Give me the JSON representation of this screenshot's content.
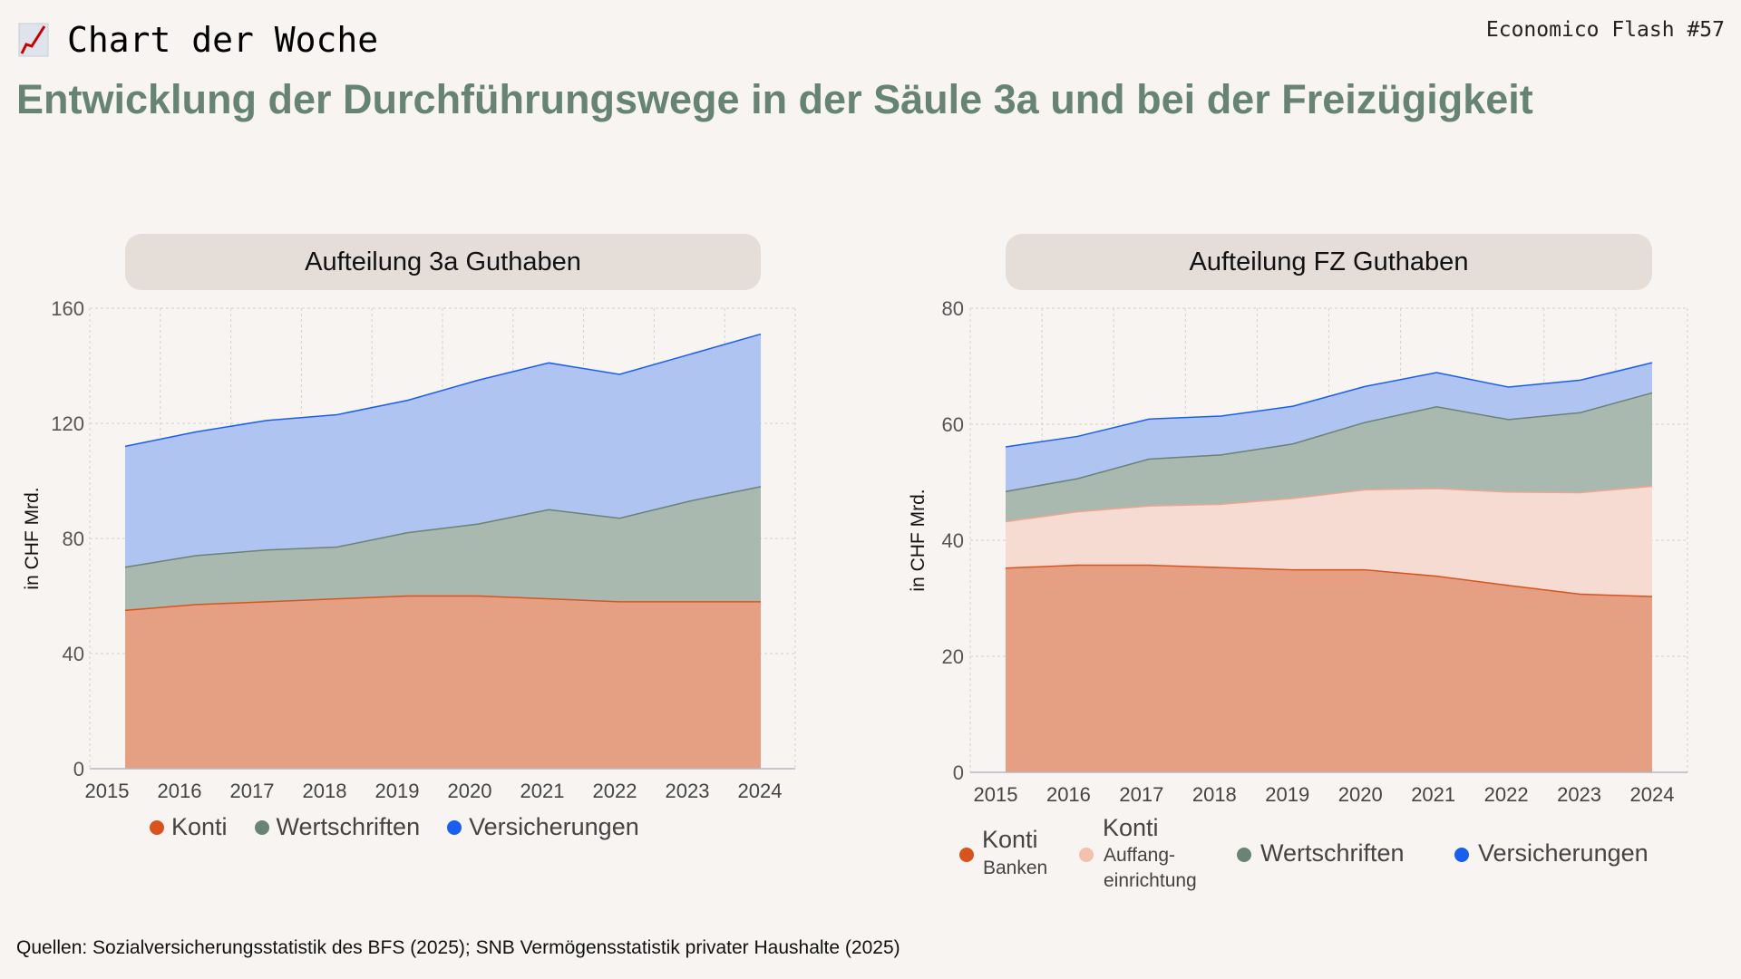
{
  "header": {
    "kicker_icon": "chart-increasing-emoji",
    "kicker": "Chart der Woche",
    "issue": "Economico Flash #57",
    "title": "Entwicklung der Durchführungswege in der Säule 3a und bei der Freizügigkeit"
  },
  "source": "Quellen: Sozialversicherungsstatistik des BFS (2025); SNB Vermögensstatistik privater Haushalte (2025)",
  "colors": {
    "konti": "#d9531e",
    "konti_fill": "#e5a083",
    "auffang": "#f0a592",
    "auffang_fill": "#f5dbd2",
    "wertschriften": "#698375",
    "wertschriften_fill": "#a9b9b0",
    "versicherungen": "#1a5ef0",
    "versicherungen_fill": "#b0c4f2"
  },
  "legend_left": [
    "Konti",
    "Wertschriften",
    "Versicherungen"
  ],
  "legend_right": {
    "banken_main": "Konti",
    "banken_sub": "Banken",
    "auffang_main": "Konti",
    "auffang_sub1": "Auffang-",
    "auffang_sub2": "einrichtung",
    "wertschriften": "Wertschriften",
    "versicherungen": "Versicherungen"
  },
  "chart_data": [
    {
      "type": "area",
      "stacked": true,
      "title": "Aufteilung 3a Guthaben",
      "ylabel": "in CHF Mrd.",
      "ylim": [
        0,
        160
      ],
      "yticks": [
        0,
        40,
        80,
        120,
        160
      ],
      "grid": true,
      "legend": "bottom",
      "categories": [
        "2015",
        "2016",
        "2017",
        "2018",
        "2019",
        "2020",
        "2021",
        "2022",
        "2023",
        "2024"
      ],
      "series": [
        {
          "name": "Konti",
          "key": "konti",
          "values": [
            55,
            57,
            58,
            59,
            60,
            60,
            59,
            58,
            58,
            58
          ]
        },
        {
          "name": "Wertschriften",
          "key": "wertschriften",
          "values": [
            15,
            17,
            18,
            18,
            22,
            25,
            31,
            29,
            35,
            40
          ]
        },
        {
          "name": "Versicherungen",
          "key": "versicherungen",
          "values": [
            42,
            43,
            45,
            46,
            46,
            50,
            51,
            50,
            51,
            53
          ]
        }
      ]
    },
    {
      "type": "area",
      "stacked": true,
      "title": "Aufteilung FZ Guthaben",
      "ylabel": "in CHF Mrd.",
      "ylim": [
        0,
        80
      ],
      "yticks": [
        0,
        20,
        40,
        60,
        80
      ],
      "grid": true,
      "legend": "bottom",
      "categories": [
        "2015",
        "2016",
        "2017",
        "2018",
        "2019",
        "2020",
        "2021",
        "2022",
        "2023",
        "2024"
      ],
      "series": [
        {
          "name": "Konti Banken",
          "key": "konti",
          "values": [
            35.2,
            35.7,
            35.7,
            35.3,
            34.9,
            34.9,
            33.8,
            32.2,
            30.7,
            30.3
          ]
        },
        {
          "name": "Konti Auffangeinrichtung",
          "key": "auffang",
          "values": [
            8.0,
            9.2,
            10.2,
            10.9,
            12.3,
            13.8,
            15.1,
            16.1,
            17.5,
            19.0
          ]
        },
        {
          "name": "Wertschriften",
          "key": "wertschriften",
          "values": [
            5.2,
            5.7,
            8.1,
            8.5,
            9.4,
            11.6,
            14.1,
            12.5,
            13.8,
            16.1
          ]
        },
        {
          "name": "Versicherungen",
          "key": "versicherungen",
          "values": [
            7.7,
            7.3,
            6.9,
            6.7,
            6.5,
            6.2,
            5.9,
            5.6,
            5.6,
            5.2
          ]
        }
      ]
    }
  ]
}
